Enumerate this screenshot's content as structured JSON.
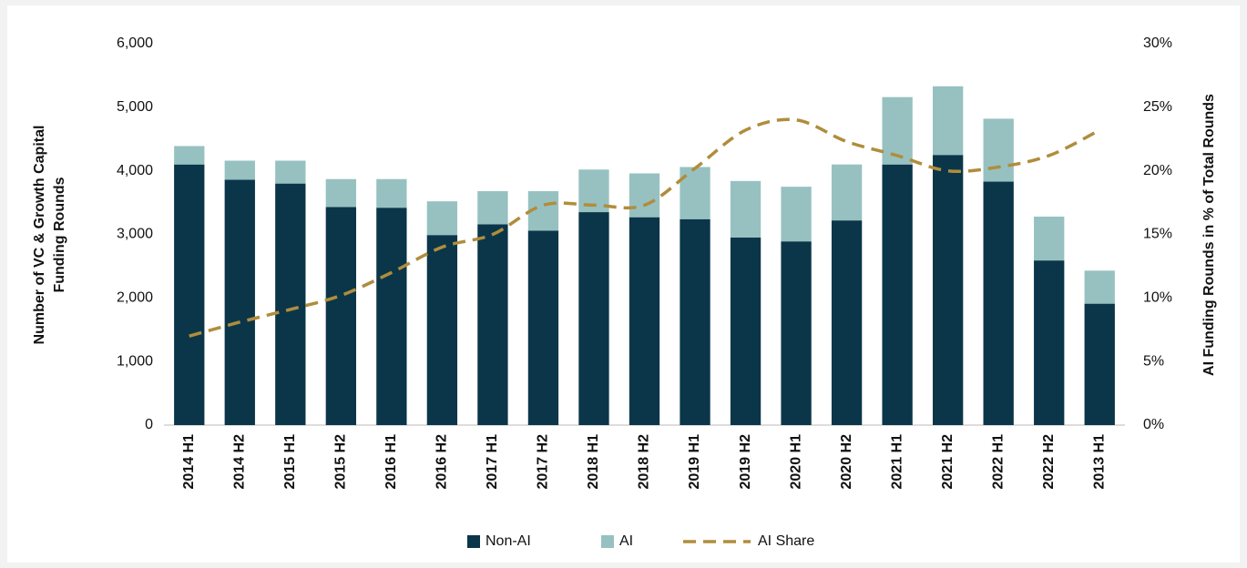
{
  "chart_data": {
    "type": "bar_line",
    "categories": [
      "2014 H1",
      "2014 H2",
      "2015 H1",
      "2015 H2",
      "2016 H1",
      "2016 H2",
      "2017 H1",
      "2017 H2",
      "2018 H1",
      "2018 H2",
      "2019 H1",
      "2019 H2",
      "2020 H1",
      "2020 H2",
      "2021 H1",
      "2021 H2",
      "2022 H1",
      "2022 H2",
      "2013 H1"
    ],
    "series": [
      {
        "name": "Non-AI",
        "color": "#0b3649",
        "type": "bar",
        "values": [
          4100,
          3860,
          3800,
          3430,
          3420,
          2990,
          3160,
          3060,
          3350,
          3270,
          3240,
          2950,
          2890,
          3220,
          4100,
          4250,
          3830,
          2590,
          1910
        ]
      },
      {
        "name": "AI",
        "color": "#97c1c1",
        "type": "bar",
        "values": [
          290,
          300,
          360,
          440,
          450,
          530,
          520,
          620,
          670,
          690,
          820,
          890,
          860,
          880,
          1060,
          1080,
          990,
          690,
          520
        ]
      },
      {
        "name": "AI Share",
        "color": "#b08d3c",
        "type": "line",
        "axis": "y2",
        "values": [
          7.0,
          8.1,
          9.1,
          10.2,
          12.0,
          14.0,
          15.0,
          17.3,
          17.3,
          17.3,
          20.2,
          23.2,
          24.0,
          22.3,
          21.2,
          20.0,
          20.3,
          21.2,
          23.2
        ]
      }
    ],
    "stacked": true,
    "y_label": [
      "Number of VC & Growth Capital",
      "Funding Rounds"
    ],
    "y2_label": "AI Funding Rounds in % of Total Rounds",
    "ylim": [
      0,
      6000
    ],
    "yticks": [
      0,
      {
        "value": 1000,
        "label": "1,000"
      },
      {
        "value": 2000,
        "label": "2,000"
      },
      {
        "value": 3000,
        "label": "3,000"
      },
      {
        "value": 4000,
        "label": "4,000"
      },
      {
        "value": 5000,
        "label": "5,000"
      },
      {
        "value": 6000,
        "label": "6,000"
      }
    ],
    "y2lim": [
      0,
      30
    ],
    "y2ticks": [
      {
        "value": 0,
        "label": "0%"
      },
      {
        "value": 5,
        "label": "5%"
      },
      {
        "value": 10,
        "label": "10%"
      },
      {
        "value": 15,
        "label": "15%"
      },
      {
        "value": 20,
        "label": "20%"
      },
      {
        "value": 25,
        "label": "25%"
      },
      {
        "value": 30,
        "label": "30%"
      }
    ],
    "grid": false,
    "legend": "bottom"
  }
}
